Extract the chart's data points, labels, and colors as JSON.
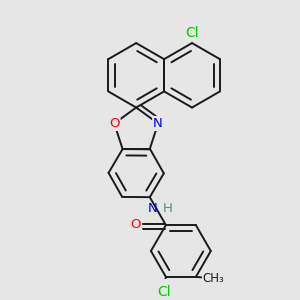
{
  "background_color": "#e6e6e6",
  "bond_color": "#1a1a1a",
  "bond_width": 1.4,
  "atom_colors": {
    "N": "#0000ff",
    "O": "#ff0000",
    "Cl": "#00cc00",
    "H": "#4a9090",
    "C": "#1a1a1a"
  },
  "font_size": 9.5
}
